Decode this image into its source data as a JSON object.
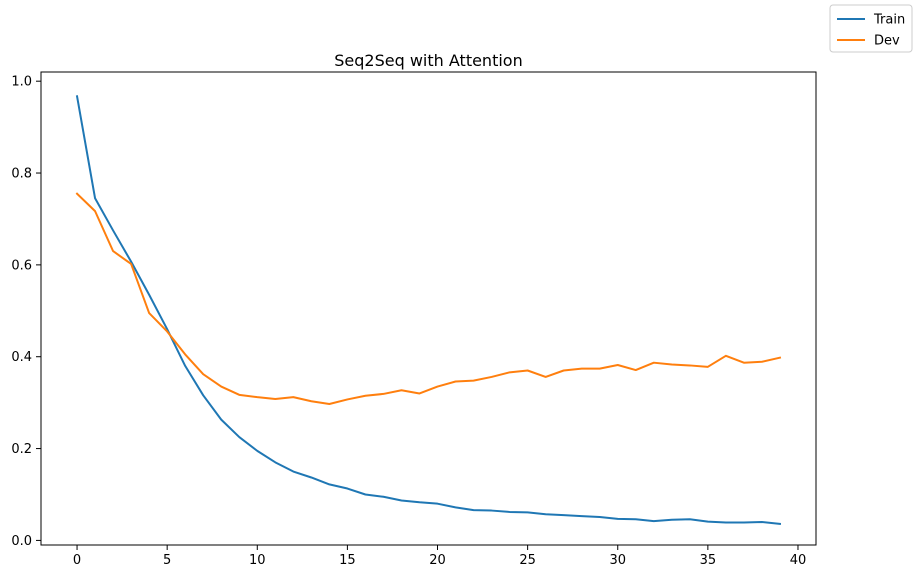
{
  "chart_data": {
    "type": "line",
    "title": "Seq2Seq with Attention",
    "xlabel": "",
    "ylabel": "",
    "xlim": [
      -2,
      41
    ],
    "ylim": [
      -0.01,
      1.02
    ],
    "xticks": [
      0,
      5,
      10,
      15,
      20,
      25,
      30,
      35,
      40
    ],
    "yticks": [
      0.0,
      0.2,
      0.4,
      0.6,
      0.8,
      1.0
    ],
    "grid": false,
    "legend_position": "top-right",
    "x": [
      0,
      1,
      2,
      3,
      4,
      5,
      6,
      7,
      8,
      9,
      10,
      11,
      12,
      13,
      14,
      15,
      16,
      17,
      18,
      19,
      20,
      21,
      22,
      23,
      24,
      25,
      26,
      27,
      28,
      29,
      30,
      31,
      32,
      33,
      34,
      35,
      36,
      37,
      38,
      39
    ],
    "series": [
      {
        "name": "Train",
        "color": "#1f77b4",
        "values": [
          0.967,
          0.745,
          0.675,
          0.607,
          0.535,
          0.46,
          0.38,
          0.316,
          0.263,
          0.225,
          0.195,
          0.17,
          0.15,
          0.137,
          0.122,
          0.113,
          0.1,
          0.095,
          0.087,
          0.083,
          0.08,
          0.072,
          0.066,
          0.065,
          0.062,
          0.061,
          0.057,
          0.055,
          0.053,
          0.051,
          0.047,
          0.046,
          0.042,
          0.045,
          0.046,
          0.041,
          0.039,
          0.039,
          0.04,
          0.036
        ]
      },
      {
        "name": "Dev",
        "color": "#ff7f0e",
        "values": [
          0.755,
          0.717,
          0.63,
          0.602,
          0.495,
          0.455,
          0.405,
          0.362,
          0.335,
          0.317,
          0.312,
          0.308,
          0.312,
          0.303,
          0.297,
          0.307,
          0.315,
          0.319,
          0.327,
          0.32,
          0.335,
          0.346,
          0.348,
          0.356,
          0.366,
          0.37,
          0.356,
          0.37,
          0.374,
          0.374,
          0.382,
          0.371,
          0.387,
          0.383,
          0.381,
          0.378,
          0.402,
          0.387,
          0.389,
          0.398
        ]
      }
    ]
  }
}
